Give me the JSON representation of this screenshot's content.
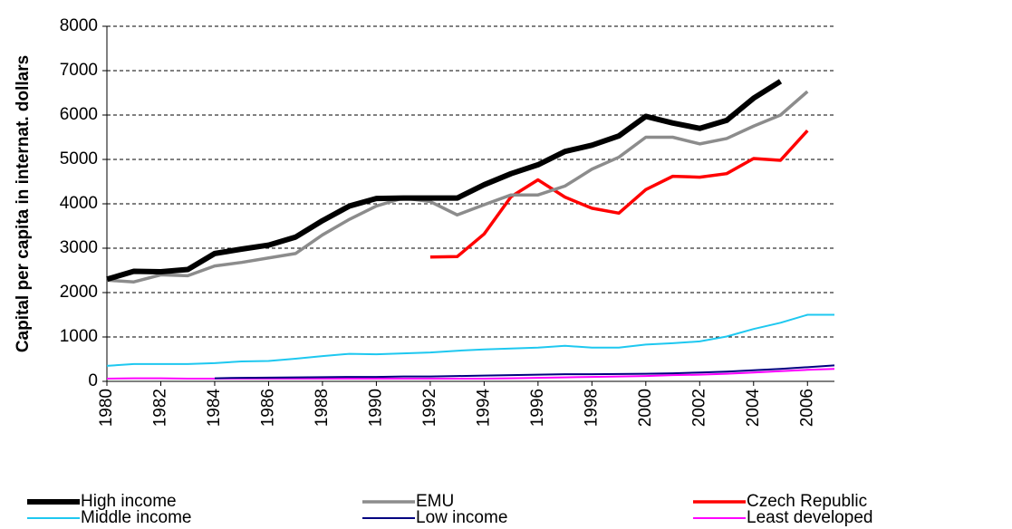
{
  "chart_data": {
    "type": "line",
    "y_label": "Capital per capita in internat. dollars",
    "x": [
      1980,
      1981,
      1982,
      1983,
      1984,
      1985,
      1986,
      1987,
      1988,
      1989,
      1990,
      1991,
      1992,
      1993,
      1994,
      1995,
      1996,
      1997,
      1998,
      1999,
      2000,
      2001,
      2002,
      2003,
      2004,
      2005,
      2006,
      2007
    ],
    "xlim": [
      1980,
      2007
    ],
    "xticks": [
      1980,
      1982,
      1984,
      1986,
      1988,
      1990,
      1992,
      1994,
      1996,
      1998,
      2000,
      2002,
      2004,
      2006
    ],
    "ylim": [
      0,
      8000
    ],
    "yticks": [
      0,
      1000,
      2000,
      3000,
      4000,
      5000,
      6000,
      7000,
      8000
    ],
    "grid": true,
    "legend": "bottom",
    "series": [
      {
        "name": "High income",
        "color": "#000000",
        "width": 6,
        "values": [
          2300,
          2480,
          2470,
          2520,
          2880,
          2980,
          3070,
          3250,
          3620,
          3950,
          4120,
          4130,
          4130,
          4130,
          4430,
          4680,
          4880,
          5180,
          5320,
          5530,
          5970,
          5820,
          5700,
          5880,
          6380,
          6760,
          null,
          null
        ]
      },
      {
        "name": "EMU",
        "color": "#8c8c8c",
        "width": 3.5,
        "values": [
          2280,
          2240,
          2400,
          2380,
          2600,
          2680,
          2780,
          2880,
          3300,
          3650,
          3950,
          4130,
          4050,
          3750,
          3980,
          4200,
          4200,
          4400,
          4780,
          5050,
          5500,
          5500,
          5350,
          5470,
          5750,
          6000,
          6530,
          null
        ]
      },
      {
        "name": "Czech Republic",
        "color": "#ff0000",
        "width": 3.5,
        "values": [
          null,
          null,
          null,
          null,
          null,
          null,
          null,
          null,
          null,
          null,
          null,
          null,
          2800,
          2810,
          3320,
          4160,
          4540,
          4150,
          3900,
          3790,
          4320,
          4620,
          4600,
          4680,
          5020,
          4980,
          5650,
          null
        ]
      },
      {
        "name": "Middle income",
        "color": "#1ec8f0",
        "width": 2,
        "values": [
          350,
          390,
          390,
          390,
          410,
          450,
          460,
          510,
          570,
          620,
          610,
          630,
          650,
          690,
          720,
          740,
          760,
          800,
          760,
          760,
          830,
          860,
          900,
          1010,
          1180,
          1320,
          1500,
          1500
        ]
      },
      {
        "name": "Low income",
        "color": "#000080",
        "width": 2,
        "values": [
          null,
          null,
          null,
          null,
          70,
          80,
          85,
          90,
          95,
          100,
          100,
          110,
          110,
          120,
          130,
          140,
          150,
          160,
          160,
          165,
          170,
          180,
          200,
          220,
          250,
          280,
          320,
          360
        ]
      },
      {
        "name": "Least developed",
        "color": "#ff00ff",
        "width": 2,
        "values": [
          60,
          70,
          70,
          60,
          60,
          60,
          60,
          60,
          60,
          60,
          60,
          60,
          60,
          60,
          60,
          70,
          80,
          90,
          100,
          110,
          120,
          140,
          150,
          170,
          200,
          230,
          260,
          280
        ]
      }
    ]
  }
}
